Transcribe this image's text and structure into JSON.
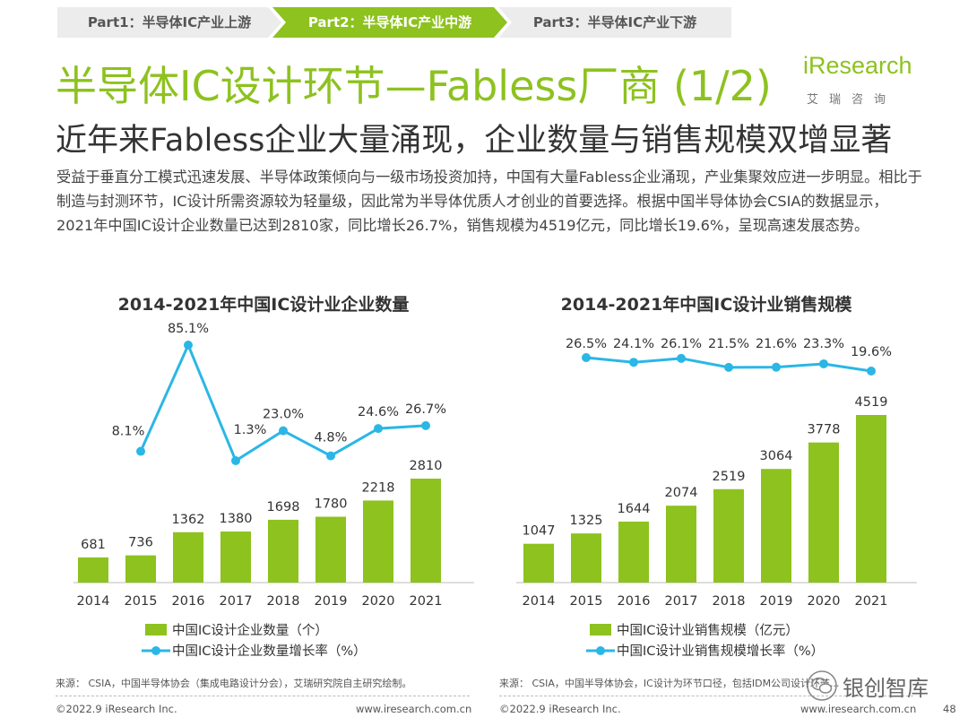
{
  "tabs": {
    "part1": "Part1：半导体IC产业上游",
    "part2": "Part2：半导体IC产业中游",
    "part3": "Part3：半导体IC产业下游"
  },
  "title": "半导体IC设计环节—Fabless厂商 (1/2)",
  "subtitle": "近年来Fabless企业大量涌现，企业数量与销售规模双增显著",
  "logo": {
    "text": "iResearch",
    "cn": "艾瑞咨询"
  },
  "body": "受益于垂直分工模式迅速发展、半导体政策倾向与一级市场投资加持，中国有大量Fabless企业涌现，产业集聚效应进一步明显。相比于制造与封测环节，IC设计所需资源较为轻量级，因此常为半导体优质人才创业的首要选择。根据中国半导体协会CSIA的数据显示，2021年中国IC设计企业数量已达到2810家，同比增长26.7%，销售规模为4519亿元，同比增长19.6%，呈现高速发展态势。",
  "colors": {
    "bar": "#8dc21f",
    "line": "#2ab7e6",
    "accent": "#8dc21f"
  },
  "chart_data": [
    {
      "type": "bar",
      "title": "2014-2021年中国IC设计业企业数量",
      "categories": [
        "2014",
        "2015",
        "2016",
        "2017",
        "2018",
        "2019",
        "2020",
        "2021"
      ],
      "series": [
        {
          "name": "中国IC设计企业数量（个）",
          "type": "bar",
          "values": [
            681,
            736,
            1362,
            1380,
            1698,
            1780,
            2218,
            2810
          ],
          "labels": [
            "681",
            "736",
            "1362",
            "1380",
            "1698",
            "1780",
            "2218",
            "2810"
          ]
        },
        {
          "name": "中国IC设计企业数量增长率（%）",
          "type": "line",
          "values": [
            null,
            8.1,
            85.1,
            1.3,
            23.0,
            4.8,
            24.6,
            26.7
          ],
          "labels": [
            null,
            "8.1%",
            "85.1%",
            "1.3%",
            "23.0%",
            "4.8%",
            "24.6%",
            "26.7%"
          ]
        }
      ],
      "legend": "bottom"
    },
    {
      "type": "bar",
      "title": "2014-2021年中国IC设计业销售规模",
      "categories": [
        "2014",
        "2015",
        "2016",
        "2017",
        "2018",
        "2019",
        "2020",
        "2021"
      ],
      "series": [
        {
          "name": "中国IC设计业销售规模（亿元）",
          "type": "bar",
          "values": [
            1047,
            1325,
            1644,
            2074,
            2519,
            3064,
            3778,
            4519
          ],
          "labels": [
            "1047",
            "1325",
            "1644",
            "2074",
            "2519",
            "3064",
            "3778",
            "4519"
          ]
        },
        {
          "name": "中国IC设计业销售规模增长率（%）",
          "type": "line",
          "values": [
            null,
            26.5,
            24.1,
            26.1,
            21.5,
            21.6,
            23.3,
            19.6
          ],
          "labels": [
            null,
            "26.5%",
            "24.1%",
            "26.1%",
            "21.5%",
            "21.6%",
            "23.3%",
            "19.6%"
          ]
        }
      ],
      "legend": "bottom"
    }
  ],
  "sources": {
    "left": "来源：  CSIA，中国半导体协会（集成电路设计分会），艾瑞研究院自主研究绘制。",
    "right": "来源：  CSIA，中国半导体协会，IC设计为环节口径，包括IDM公司设计环节..."
  },
  "footer": {
    "copyright1": "©2022.9 iResearch Inc.",
    "url1": "www.iresearch.com.cn",
    "copyright2": "©2022.9 iResearch Inc.",
    "url2": "www.iresearch.com.cn",
    "page": "48"
  },
  "watermark": {
    "text": "银创智库",
    "icon": "wechat-icon"
  }
}
